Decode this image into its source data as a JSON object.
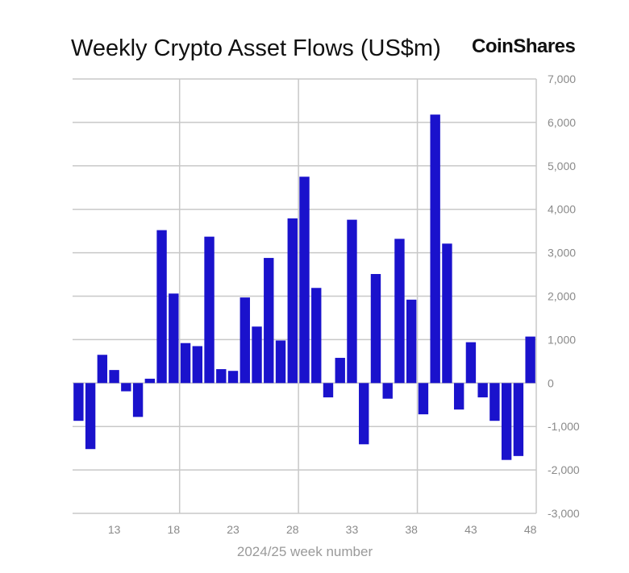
{
  "chart_data": {
    "type": "bar",
    "title": "Weekly Crypto Asset Flows (US$m)",
    "brand": "CoinShares",
    "xlabel": "2024/25 week number",
    "ylabel": "",
    "ylim": [
      -3000,
      7000
    ],
    "yticks": [
      7000,
      6000,
      5000,
      4000,
      3000,
      2000,
      1000,
      0,
      -1000,
      -2000,
      -3000
    ],
    "ytick_labels": [
      "7,000",
      "6,000",
      "5,000",
      "4,000",
      "3,000",
      "2,000",
      "1,000",
      "0",
      "-1,000",
      "-2,000",
      "-3,000"
    ],
    "xtick_labels": [
      "13",
      "18",
      "23",
      "28",
      "33",
      "38",
      "43",
      "48"
    ],
    "xticks": [
      13,
      18,
      23,
      28,
      33,
      38,
      43,
      48
    ],
    "weeks": [
      10,
      11,
      12,
      13,
      14,
      15,
      16,
      17,
      18,
      19,
      20,
      21,
      22,
      23,
      24,
      25,
      26,
      27,
      28,
      29,
      30,
      31,
      32,
      33,
      34,
      35,
      36,
      37,
      38,
      39,
      40,
      41,
      42,
      43,
      44,
      45,
      46,
      47,
      48
    ],
    "values": [
      -870,
      -1520,
      650,
      300,
      -190,
      -780,
      100,
      3520,
      2060,
      920,
      850,
      3370,
      320,
      280,
      1970,
      1300,
      2880,
      980,
      3790,
      4750,
      2190,
      -330,
      580,
      3760,
      -1410,
      2510,
      -360,
      3320,
      1920,
      -720,
      6180,
      3210,
      -610,
      940,
      -330,
      -870,
      -1770,
      -1680,
      1070
    ],
    "bar_color": "#1a12cc",
    "grid": true,
    "yaxis_position": "right"
  }
}
